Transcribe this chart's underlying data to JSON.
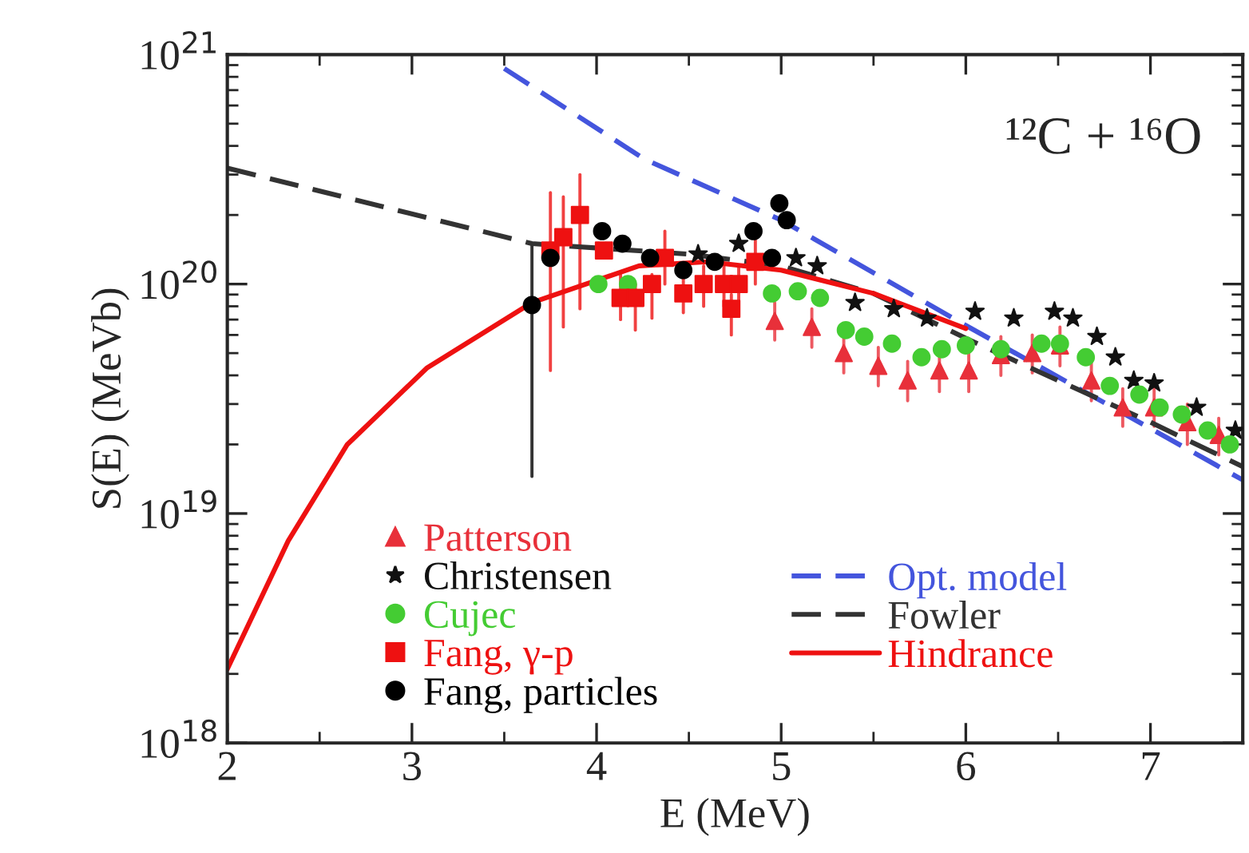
{
  "chart_data": {
    "type": "scatter",
    "xlabel": "E (MeV)",
    "ylabel": "S(E) (MeVb)",
    "annotations": [
      "¹²C + ¹⁶O"
    ],
    "log": "y",
    "grid": false,
    "legend": "bottom",
    "xlim": [
      2,
      7.5
    ],
    "xticks": [
      2,
      3,
      4,
      5,
      6,
      7
    ],
    "ylim": [
      1e+18,
      1e+21
    ],
    "yticks": [
      {
        "value": 1e+18,
        "label": "10$^{18}$"
      },
      {
        "value": 1e+19,
        "label": "10$^{19}$"
      },
      {
        "value": 1e+20,
        "label": "10$^{20}$"
      },
      {
        "value": 1e+21,
        "label": "10$^{21}$"
      }
    ],
    "series": [
      {
        "name": "Patterson",
        "marker": "triangle",
        "color": "#e8303a",
        "x": [
          4.965,
          5.166,
          5.339,
          5.526,
          5.685,
          5.857,
          6.016,
          6.19,
          6.36,
          6.51,
          6.68,
          6.85,
          7.02,
          7.2,
          7.37
        ],
        "values": [
          6.9e+19,
          6.5e+19,
          5e+19,
          4.4e+19,
          3.8e+19,
          4.2e+19,
          4.2e+19,
          4.9e+19,
          5e+19,
          5.4e+19,
          3.8e+19,
          2.9e+19,
          2.9e+19,
          2.5e+19,
          2.2e+19
        ],
        "errors": [
          [
            5.7e+19,
            8.3e+19
          ],
          [
            5.3e+19,
            7.8e+19
          ],
          [
            4.1e+19,
            6e+19
          ],
          [
            3.6e+19,
            5.3e+19
          ],
          [
            3.1e+19,
            4.6e+19
          ],
          [
            3.4e+19,
            5e+19
          ],
          [
            3.4e+19,
            5e+19
          ],
          [
            4e+19,
            5.9e+19
          ],
          [
            4.1e+19,
            6e+19
          ],
          [
            4.4e+19,
            6.5e+19
          ],
          [
            3.1e+19,
            4.6e+19
          ],
          [
            2.4e+19,
            3.5e+19
          ],
          [
            2.4e+19,
            3.5e+19
          ],
          [
            2e+19,
            3e+19
          ],
          [
            1.8e+19,
            2.6e+19
          ]
        ]
      },
      {
        "name": "Christensen",
        "marker": "star",
        "color": "#111111",
        "x": [
          4.55,
          4.77,
          5.08,
          5.195,
          5.4,
          5.61,
          5.79,
          6.05,
          6.26,
          6.48,
          6.58,
          6.71,
          6.81,
          6.91,
          7.02,
          7.25,
          7.46
        ],
        "values": [
          1.35e+20,
          1.5e+20,
          1.3e+20,
          1.2e+20,
          8.3e+19,
          7.8e+19,
          7.1e+19,
          7.6e+19,
          7.1e+19,
          7.6e+19,
          7.1e+19,
          5.9e+19,
          4.8e+19,
          3.8e+19,
          3.7e+19,
          2.9e+19,
          2.3e+19
        ]
      },
      {
        "name": "Cujec",
        "marker": "circle",
        "color": "#44cc33",
        "x": [
          4.01,
          4.17,
          4.95,
          5.09,
          5.21,
          5.35,
          5.45,
          5.6,
          5.76,
          5.87,
          6.0,
          6.19,
          6.41,
          6.51,
          6.65,
          6.78,
          6.94,
          7.05,
          7.17,
          7.31,
          7.43
        ],
        "values": [
          1e+20,
          1e+20,
          9.1e+19,
          9.3e+19,
          8.7e+19,
          6.3e+19,
          5.9e+19,
          5.5e+19,
          4.8e+19,
          5.2e+19,
          5.4e+19,
          5.2e+19,
          5.5e+19,
          5.5e+19,
          4.8e+19,
          3.6e+19,
          3.3e+19,
          2.9e+19,
          2.7e+19,
          2.3e+19,
          2e+19
        ]
      },
      {
        "name": "Fang, γ-p",
        "marker": "square",
        "color": "#ee1111",
        "x": [
          3.75,
          3.82,
          3.91,
          4.04,
          4.13,
          4.21,
          4.3,
          4.37,
          4.47,
          4.58,
          4.69,
          4.73,
          4.77,
          4.86
        ],
        "values": [
          1.4e+20,
          1.6e+20,
          2e+20,
          1.4e+20,
          8.7e+19,
          8.7e+19,
          1e+20,
          1.3e+20,
          9.1e+19,
          1e+20,
          1e+20,
          7.8e+19,
          1e+20,
          1.25e+20
        ],
        "errors": [
          [
            4.2e+19,
            2.5e+20
          ],
          [
            6.5e+19,
            2.4e+20
          ],
          [
            7.8e+19,
            3e+20
          ],
          null,
          [
            7e+19,
            1.1e+20
          ],
          [
            6.3e+19,
            1e+20
          ],
          [
            7.1e+19,
            1.1e+20
          ],
          [
            1e+20,
            1.7e+20
          ],
          [
            7.5e+19,
            1.1e+20
          ],
          [
            8e+19,
            1.2e+20
          ],
          [
            8e+19,
            1.2e+20
          ],
          [
            6e+19,
            9e+19
          ],
          [
            8e+19,
            1.2e+20
          ],
          [
            1e+20,
            1.6e+20
          ]
        ]
      },
      {
        "name": "Fang, particles",
        "marker": "circle",
        "color": "#000000",
        "x": [
          3.65,
          3.75,
          4.03,
          4.14,
          4.29,
          4.47,
          4.64,
          4.85,
          4.95,
          4.99,
          5.03
        ],
        "values": [
          8.1e+19,
          1.3e+20,
          1.7e+20,
          1.5e+20,
          1.3e+20,
          1.15e+20,
          1.25e+20,
          1.7e+20,
          1.3e+20,
          2.25e+20,
          1.9e+20
        ],
        "errors": [
          [
            1.45e+19,
            1.5e+20
          ],
          null,
          null,
          null,
          null,
          null,
          null,
          null,
          null,
          null,
          null
        ]
      },
      {
        "name": "Opt. model",
        "type": "line",
        "line_style": "dashed",
        "color": "#4455dd",
        "x": [
          3.5,
          4.26,
          5.0,
          6.0,
          7.5
        ],
        "values": [
          8.7e+20,
          3.5e+20,
          1.9e+20,
          6.6e+19,
          1.4e+19
        ]
      },
      {
        "name": "Fowler",
        "type": "line",
        "line_style": "dashed",
        "color": "#333333",
        "x": [
          2.0,
          3.65,
          4.5,
          5.0,
          5.5,
          6.0,
          6.5,
          7.0,
          7.5
        ],
        "values": [
          3.2e+20,
          1.5e+20,
          1.35e+20,
          1.2e+20,
          9.1e+19,
          5.8e+19,
          3.8e+19,
          2.5e+19,
          1.6e+19
        ]
      },
      {
        "name": "Hindrance",
        "type": "line",
        "line_style": "solid",
        "color": "#ee1111",
        "x": [
          2.0,
          2.33,
          2.65,
          3.08,
          3.65,
          4.23,
          4.6,
          5.0,
          5.5,
          6.0
        ],
        "values": [
          2.1e+18,
          7.6e+18,
          2e+19,
          4.3e+19,
          8.3e+19,
          1.2e+20,
          1.25e+20,
          1.15e+20,
          9.1e+19,
          6.4e+19
        ]
      }
    ]
  }
}
